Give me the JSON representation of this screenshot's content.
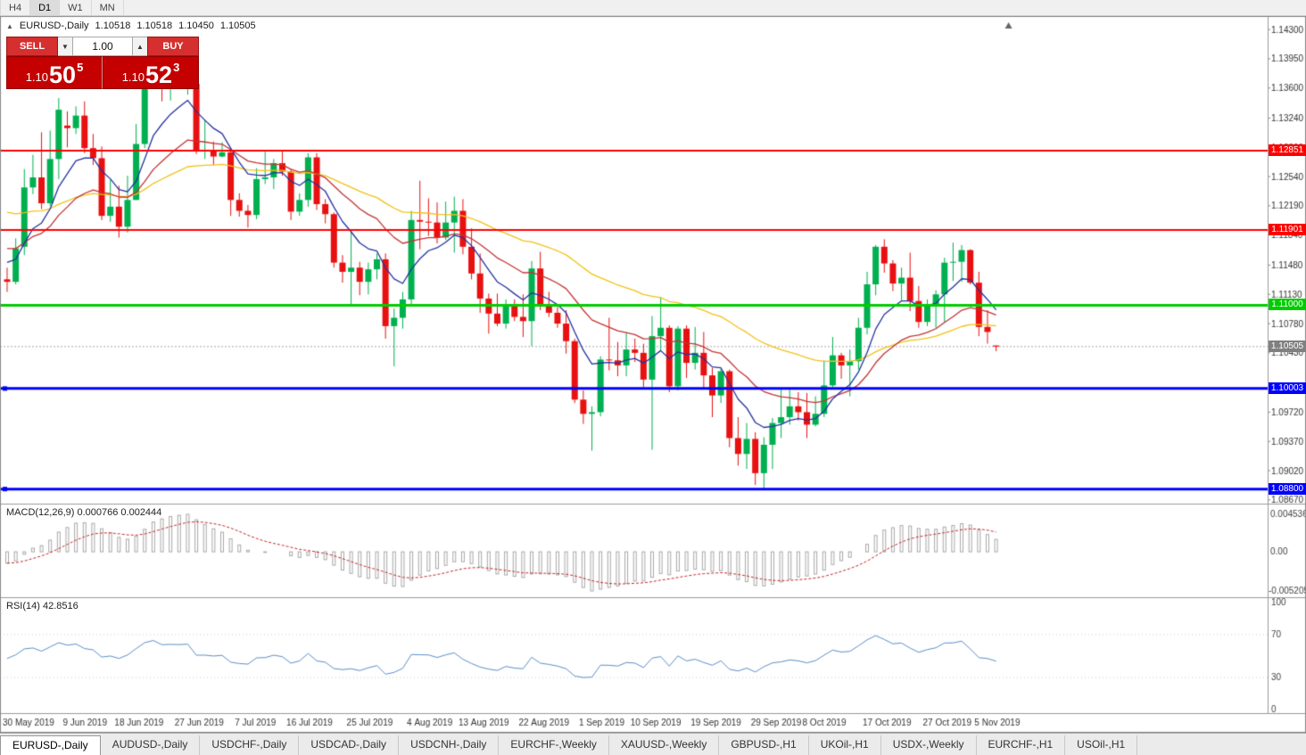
{
  "toolbar": {
    "periods": [
      "H4",
      "D1",
      "W1",
      "MN"
    ]
  },
  "header": {
    "collapse_icon": "▲",
    "symbol": "EURUSD-,Daily",
    "open": "1.10518",
    "high": "1.10518",
    "low": "1.10450",
    "close": "1.10505"
  },
  "one_click": {
    "sell_label": "SELL",
    "buy_label": "BUY",
    "volume": "1.00",
    "sell_price": {
      "prefix": "1.10",
      "big": "50",
      "sup": "5"
    },
    "buy_price": {
      "prefix": "1.10",
      "big": "52",
      "sup": "3"
    }
  },
  "price_axis": {
    "ticks": [
      "1.14300",
      "1.13950",
      "1.13600",
      "1.13240",
      "1.12890",
      "1.12540",
      "1.12190",
      "1.11840",
      "1.11480",
      "1.11130",
      "1.10780",
      "1.10430",
      "1.09720",
      "1.09370",
      "1.09020",
      "1.08670"
    ]
  },
  "hlines": [
    {
      "price": 1.12851,
      "label": "1.12851",
      "color": "#ff0000",
      "width": 2,
      "handles": false
    },
    {
      "price": 1.11901,
      "label": "1.11901",
      "color": "#ff0000",
      "width": 2,
      "handles": false
    },
    {
      "price": 1.11,
      "label": "1.11000",
      "color": "#00cc00",
      "width": 3,
      "handles": false
    },
    {
      "price": 1.10003,
      "label": "1.10003",
      "color": "#0000ff",
      "width": 3,
      "handles": true
    },
    {
      "price": 1.088,
      "label": "1.08800",
      "color": "#0000ff",
      "width": 3,
      "handles": true
    }
  ],
  "current_price": {
    "value": 1.10505,
    "label": "1.10505",
    "color": "#808080"
  },
  "indicators": {
    "macd": {
      "label": "MACD(12,26,9) 0.000766 0.002444",
      "value": "0.000766",
      "signal_value": "0.002444",
      "axis_max": "0.004536",
      "axis_zero": "0.00",
      "axis_min": "-0.005205"
    },
    "rsi": {
      "label": "RSI(14) 42.8516",
      "value": "42.8516",
      "axis": [
        "100",
        "70",
        "30",
        "0"
      ],
      "levels": [
        70,
        30
      ]
    }
  },
  "tabs": [
    {
      "label": "EURUSD-,Daily",
      "active": true
    },
    {
      "label": "AUDUSD-,Daily",
      "active": false
    },
    {
      "label": "USDCHF-,Daily",
      "active": false
    },
    {
      "label": "USDCAD-,Daily",
      "active": false
    },
    {
      "label": "USDCNH-,Daily",
      "active": false
    },
    {
      "label": "EURCHF-,Weekly",
      "active": false
    },
    {
      "label": "XAUUSD-,Weekly",
      "active": false
    },
    {
      "label": "GBPUSD-,H1",
      "active": false
    },
    {
      "label": "UKOil-,H1",
      "active": false
    },
    {
      "label": "USDX-,Weekly",
      "active": false
    },
    {
      "label": "EURCHF-,H1",
      "active": false
    },
    {
      "label": "USOil-,H1",
      "active": false
    }
  ],
  "chart_data": {
    "type": "candlestick",
    "symbol": "EURUSD-",
    "timeframe": "Daily",
    "ylim": [
      1.0862,
      1.1444
    ],
    "colors": {
      "bull": "#00b050",
      "bear": "#e81010",
      "ma_fast": "#2433a0",
      "ma_mid": "#c23434",
      "ma_slow": "#f2c216",
      "macd_hist": "#a8a8a8",
      "macd_signal": "#c62828",
      "rsi": "#5b8fc9"
    },
    "moving_averages": [
      {
        "period": 8,
        "color_key": "ma_fast"
      },
      {
        "period": 20,
        "color_key": "ma_mid"
      },
      {
        "period": 45,
        "color_key": "ma_slow"
      }
    ],
    "x_labels": [
      {
        "i": 0,
        "label": "30 May 2019"
      },
      {
        "i": 7,
        "label": "9 Jun 2019"
      },
      {
        "i": 13,
        "label": "18 Jun 2019"
      },
      {
        "i": 20,
        "label": "27 Jun 2019"
      },
      {
        "i": 27,
        "label": "7 Jul 2019"
      },
      {
        "i": 33,
        "label": "16 Jul 2019"
      },
      {
        "i": 40,
        "label": "25 Jul 2019"
      },
      {
        "i": 47,
        "label": "4 Aug 2019"
      },
      {
        "i": 53,
        "label": "13 Aug 2019"
      },
      {
        "i": 60,
        "label": "22 Aug 2019"
      },
      {
        "i": 67,
        "label": "1 Sep 2019"
      },
      {
        "i": 73,
        "label": "10 Sep 2019"
      },
      {
        "i": 80,
        "label": "19 Sep 2019"
      },
      {
        "i": 87,
        "label": "29 Sep 2019"
      },
      {
        "i": 93,
        "label": "8 Oct 2019"
      },
      {
        "i": 100,
        "label": "17 Oct 2019"
      },
      {
        "i": 107,
        "label": "27 Oct 2019"
      },
      {
        "i": 113,
        "label": "5 Nov 2019"
      }
    ],
    "candles": [
      [
        1.1131,
        1.1145,
        1.1116,
        1.1128
      ],
      [
        1.1128,
        1.118,
        1.1125,
        1.1168
      ],
      [
        1.117,
        1.1263,
        1.116,
        1.1241
      ],
      [
        1.1241,
        1.128,
        1.1233,
        1.1253
      ],
      [
        1.1253,
        1.1307,
        1.1215,
        1.1222
      ],
      [
        1.1222,
        1.1309,
        1.1219,
        1.1275
      ],
      [
        1.1275,
        1.1348,
        1.1251,
        1.1334
      ],
      [
        1.1315,
        1.1332,
        1.1289,
        1.1312
      ],
      [
        1.1312,
        1.1338,
        1.1305,
        1.1327
      ],
      [
        1.1327,
        1.1344,
        1.1282,
        1.1288
      ],
      [
        1.1288,
        1.1305,
        1.1268,
        1.1276
      ],
      [
        1.1276,
        1.129,
        1.1202,
        1.1207
      ],
      [
        1.1207,
        1.125,
        1.12,
        1.1218
      ],
      [
        1.1218,
        1.1243,
        1.1181,
        1.1194
      ],
      [
        1.1194,
        1.1255,
        1.1187,
        1.1226
      ],
      [
        1.1226,
        1.1317,
        1.1226,
        1.1293
      ],
      [
        1.1293,
        1.1378,
        1.1288,
        1.1369
      ],
      [
        1.1369,
        1.1412,
        1.1365,
        1.14
      ],
      [
        1.14,
        1.141,
        1.1344,
        1.1365
      ],
      [
        1.1365,
        1.1391,
        1.1345,
        1.137
      ],
      [
        1.137,
        1.139,
        1.1362,
        1.1368
      ],
      [
        1.1368,
        1.1394,
        1.1352,
        1.1373
      ],
      [
        1.1365,
        1.1368,
        1.1281,
        1.1285
      ],
      [
        1.1285,
        1.1322,
        1.1275,
        1.1285
      ],
      [
        1.1285,
        1.1296,
        1.1268,
        1.1278
      ],
      [
        1.1278,
        1.1295,
        1.1277,
        1.1283
      ],
      [
        1.1283,
        1.1288,
        1.1207,
        1.1226
      ],
      [
        1.1226,
        1.1234,
        1.1206,
        1.1213
      ],
      [
        1.1213,
        1.122,
        1.1193,
        1.1208
      ],
      [
        1.1208,
        1.1264,
        1.1203,
        1.1251
      ],
      [
        1.1251,
        1.1286,
        1.1245,
        1.1253
      ],
      [
        1.1253,
        1.1275,
        1.1239,
        1.127
      ],
      [
        1.127,
        1.1284,
        1.1255,
        1.126
      ],
      [
        1.126,
        1.1263,
        1.1202,
        1.1212
      ],
      [
        1.1212,
        1.1234,
        1.1207,
        1.1226
      ],
      [
        1.1226,
        1.1282,
        1.1218,
        1.1277
      ],
      [
        1.1277,
        1.1282,
        1.1214,
        1.1221
      ],
      [
        1.1221,
        1.1227,
        1.1198,
        1.1209
      ],
      [
        1.1209,
        1.1211,
        1.1145,
        1.1151
      ],
      [
        1.1151,
        1.116,
        1.1127,
        1.114
      ],
      [
        1.114,
        1.1188,
        1.1101,
        1.1145
      ],
      [
        1.1145,
        1.1152,
        1.1112,
        1.1128
      ],
      [
        1.1128,
        1.1151,
        1.1113,
        1.1143
      ],
      [
        1.1143,
        1.1162,
        1.1131,
        1.1155
      ],
      [
        1.1155,
        1.1162,
        1.106,
        1.1075
      ],
      [
        1.1075,
        1.1096,
        1.1027,
        1.1085
      ],
      [
        1.1085,
        1.1116,
        1.1072,
        1.1107
      ],
      [
        1.1107,
        1.1213,
        1.1101,
        1.1202
      ],
      [
        1.1202,
        1.1249,
        1.1167,
        1.12
      ],
      [
        1.12,
        1.1228,
        1.1183,
        1.1199
      ],
      [
        1.1199,
        1.1223,
        1.1174,
        1.1181
      ],
      [
        1.1181,
        1.1224,
        1.1178,
        1.1199
      ],
      [
        1.1199,
        1.123,
        1.1163,
        1.1213
      ],
      [
        1.1213,
        1.1227,
        1.1161,
        1.117
      ],
      [
        1.117,
        1.1192,
        1.1131,
        1.1138
      ],
      [
        1.1138,
        1.1162,
        1.1091,
        1.1108
      ],
      [
        1.1108,
        1.1114,
        1.1066,
        1.109
      ],
      [
        1.109,
        1.1114,
        1.1075,
        1.1078
      ],
      [
        1.1078,
        1.1107,
        1.1072,
        1.1099
      ],
      [
        1.1099,
        1.1107,
        1.1081,
        1.1086
      ],
      [
        1.1086,
        1.1113,
        1.1062,
        1.1081
      ],
      [
        1.1081,
        1.1153,
        1.1051,
        1.1144
      ],
      [
        1.1144,
        1.1164,
        1.1094,
        1.1101
      ],
      [
        1.1101,
        1.1116,
        1.1086,
        1.1091
      ],
      [
        1.1091,
        1.1098,
        1.1073,
        1.1078
      ],
      [
        1.1078,
        1.1094,
        1.1042,
        1.1057
      ],
      [
        1.1057,
        1.106,
        1.0983,
        1.0987
      ],
      [
        1.0987,
        1.0998,
        1.0958,
        1.097
      ],
      [
        1.097,
        1.0979,
        1.0926,
        1.0972
      ],
      [
        1.0972,
        1.1039,
        1.0967,
        1.1035
      ],
      [
        1.1035,
        1.1085,
        1.1022,
        1.1034
      ],
      [
        1.1034,
        1.1056,
        1.1015,
        1.1028
      ],
      [
        1.1028,
        1.1067,
        1.1015,
        1.1047
      ],
      [
        1.1047,
        1.106,
        1.1032,
        1.1043
      ],
      [
        1.1043,
        1.1054,
        1.1002,
        1.1011
      ],
      [
        1.1011,
        1.1087,
        1.0927,
        1.1063
      ],
      [
        1.1063,
        1.111,
        1.1045,
        1.1073
      ],
      [
        1.1073,
        1.1076,
        1.0996,
        1.1003
      ],
      [
        1.1003,
        1.1075,
        1.0998,
        1.1072
      ],
      [
        1.1072,
        1.1076,
        1.1013,
        1.1031
      ],
      [
        1.1031,
        1.1074,
        1.1023,
        1.1043
      ],
      [
        1.1043,
        1.1068,
        1.1,
        1.1016
      ],
      [
        1.1016,
        1.1025,
        1.0966,
        1.0992
      ],
      [
        1.0992,
        1.1024,
        1.0983,
        1.1021
      ],
      [
        1.1021,
        1.1023,
        1.093,
        1.0941
      ],
      [
        1.0941,
        1.0966,
        1.0908,
        1.0922
      ],
      [
        1.0922,
        1.0959,
        1.0904,
        1.094
      ],
      [
        1.094,
        1.0948,
        1.0885,
        1.0899
      ],
      [
        1.0899,
        1.0942,
        1.0879,
        1.0933
      ],
      [
        1.0933,
        1.0965,
        1.0904,
        1.0959
      ],
      [
        1.0959,
        1.0999,
        1.0941,
        1.0966
      ],
      [
        1.0966,
        1.0999,
        1.0957,
        1.0979
      ],
      [
        1.0979,
        1.0996,
        1.0962,
        1.0972
      ],
      [
        1.0972,
        1.0995,
        1.0941,
        1.0957
      ],
      [
        1.0957,
        1.0991,
        1.0955,
        1.097
      ],
      [
        1.097,
        1.1034,
        1.0966,
        1.1004
      ],
      [
        1.1004,
        1.1062,
        1.1002,
        1.104
      ],
      [
        1.104,
        1.1043,
        1.1012,
        1.1028
      ],
      [
        1.1028,
        1.1047,
        1.0991,
        1.1033
      ],
      [
        1.1033,
        1.1085,
        1.1023,
        1.1073
      ],
      [
        1.1073,
        1.114,
        1.1065,
        1.1125
      ],
      [
        1.1125,
        1.1172,
        1.1112,
        1.117
      ],
      [
        1.117,
        1.1179,
        1.1139,
        1.115
      ],
      [
        1.115,
        1.1154,
        1.1117,
        1.1126
      ],
      [
        1.1126,
        1.1145,
        1.1106,
        1.1133
      ],
      [
        1.1133,
        1.1163,
        1.1093,
        1.1105
      ],
      [
        1.1105,
        1.1123,
        1.1073,
        1.108
      ],
      [
        1.108,
        1.1107,
        1.1075,
        1.1099
      ],
      [
        1.1099,
        1.1118,
        1.1073,
        1.1113
      ],
      [
        1.1113,
        1.1157,
        1.108,
        1.1151
      ],
      [
        1.1151,
        1.1175,
        1.1129,
        1.1152
      ],
      [
        1.1152,
        1.1172,
        1.1128,
        1.1166
      ],
      [
        1.1166,
        1.1167,
        1.1125,
        1.1127
      ],
      [
        1.1127,
        1.114,
        1.1063,
        1.1074
      ],
      [
        1.1074,
        1.1094,
        1.1054,
        1.1068
      ],
      [
        1.10518,
        1.10518,
        1.1045,
        1.10505
      ]
    ]
  }
}
